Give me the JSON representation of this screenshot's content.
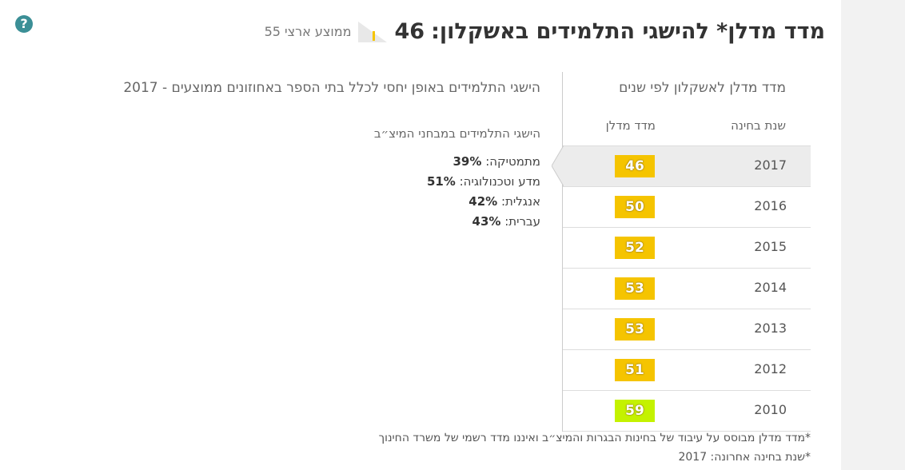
{
  "header": {
    "title": "מדד מדלן* להישגי התלמידים באשקלון:",
    "score": "46",
    "national_average": "ממוצע ארצי 55"
  },
  "achievements": {
    "title": "הישגי התלמידים באופן יחסי לכלל בתי הספר באחוזונים ממוצעים - 2017",
    "subtitle": "הישגי התלמידים במבחני המיצ״ב",
    "items": [
      {
        "subject": "מתמטיקה:",
        "value": "39%"
      },
      {
        "subject": "מדע וטכנולוגיה:",
        "value": "51%"
      },
      {
        "subject": "אנגלית:",
        "value": "42%"
      },
      {
        "subject": "עברית:",
        "value": "43%"
      }
    ]
  },
  "table": {
    "title": "מדד מדלן לאשקלון לפי שנים",
    "columns": [
      "שנת בחינה",
      "מדד מדלן"
    ],
    "rows": [
      {
        "year": "2017",
        "score": "46",
        "color": "#f5c400"
      },
      {
        "year": "2016",
        "score": "50",
        "color": "#f5c400"
      },
      {
        "year": "2015",
        "score": "52",
        "color": "#f5c400"
      },
      {
        "year": "2014",
        "score": "53",
        "color": "#f5c400"
      },
      {
        "year": "2013",
        "score": "53",
        "color": "#f5c400"
      },
      {
        "year": "2012",
        "score": "51",
        "color": "#f5c400"
      },
      {
        "year": "2010",
        "score": "59",
        "color": "#c4f200"
      }
    ]
  },
  "footnotes": [
    "*מדד מדלן מבוסס על עיבוד של בחינות הבגרות והמיצ״ב ואיננו מדד רשמי של משרד החינוך",
    "*שנת בחינה אחרונה: 2017"
  ]
}
